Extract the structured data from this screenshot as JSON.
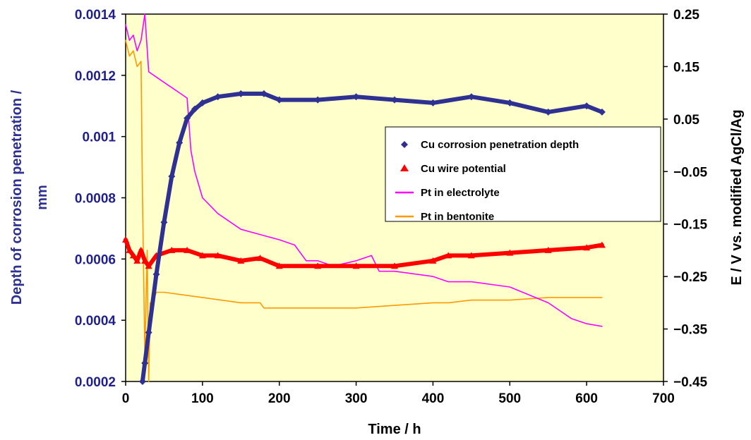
{
  "chart_data": {
    "type": "line",
    "xlabel": "Time / h",
    "ylabel_left": [
      "Depth of corrosion penetration /",
      "mm"
    ],
    "ylabel_right": "E / V vs. modified AgCl/Ag",
    "xlim": [
      0,
      700
    ],
    "ylim_left": [
      0.0002,
      0.0014
    ],
    "ylim_right": [
      -0.45,
      0.25
    ],
    "x_ticks": [
      "0",
      "100",
      "200",
      "300",
      "400",
      "500",
      "600",
      "700"
    ],
    "y_left_ticks": [
      "0.0002",
      "0.0004",
      "0.0006",
      "0.0008",
      "0.001",
      "0.0012",
      "0.0014"
    ],
    "y_right_ticks": [
      "-0.45",
      "-0.35",
      "-0.25",
      "-0.15",
      "-0.05",
      "0.05",
      "0.15",
      "0.25"
    ],
    "plot_background": "#ffffcc",
    "legend_position": "right-center",
    "series": [
      {
        "name": "Cu corrosion penetration depth",
        "axis": "left",
        "marker": "diamond",
        "color": "#2e3192",
        "x": [
          22,
          25,
          30,
          40,
          50,
          60,
          70,
          80,
          90,
          100,
          120,
          150,
          180,
          200,
          250,
          300,
          350,
          400,
          450,
          500,
          550,
          600,
          620
        ],
        "y": [
          0.0002,
          0.00026,
          0.00036,
          0.00055,
          0.00072,
          0.00087,
          0.00098,
          0.00106,
          0.00109,
          0.00111,
          0.00113,
          0.00114,
          0.00114,
          0.00112,
          0.00112,
          0.00113,
          0.00112,
          0.00111,
          0.00113,
          0.00111,
          0.00108,
          0.0011,
          0.00108
        ]
      },
      {
        "name": "Cu wire potential",
        "axis": "right",
        "marker": "triangle",
        "color": "#ff0000",
        "x": [
          0,
          5,
          10,
          15,
          20,
          25,
          30,
          40,
          60,
          80,
          100,
          120,
          150,
          175,
          200,
          250,
          300,
          350,
          400,
          420,
          450,
          500,
          550,
          600,
          620
        ],
        "y": [
          -0.18,
          -0.2,
          -0.21,
          -0.22,
          -0.2,
          -0.22,
          -0.23,
          -0.21,
          -0.2,
          -0.2,
          -0.21,
          -0.21,
          -0.22,
          -0.215,
          -0.23,
          -0.23,
          -0.23,
          -0.23,
          -0.22,
          -0.21,
          -0.21,
          -0.205,
          -0.2,
          -0.195,
          -0.19
        ]
      },
      {
        "name": "Pt in electrolyte",
        "axis": "right",
        "marker": "none",
        "color": "#ff00ff",
        "x": [
          0,
          5,
          10,
          15,
          20,
          25,
          30,
          40,
          50,
          60,
          70,
          80,
          85,
          90,
          100,
          120,
          150,
          175,
          200,
          220,
          235,
          250,
          270,
          300,
          320,
          330,
          350,
          400,
          420,
          450,
          500,
          550,
          580,
          600,
          620
        ],
        "y": [
          0.23,
          0.2,
          0.21,
          0.18,
          0.2,
          0.25,
          0.14,
          0.13,
          0.12,
          0.11,
          0.1,
          0.09,
          -0.01,
          -0.05,
          -0.1,
          -0.13,
          -0.16,
          -0.17,
          -0.18,
          -0.19,
          -0.22,
          -0.22,
          -0.23,
          -0.22,
          -0.21,
          -0.24,
          -0.24,
          -0.25,
          -0.26,
          -0.26,
          -0.27,
          -0.3,
          -0.33,
          -0.34,
          -0.345
        ]
      },
      {
        "name": "Pt in bentonite",
        "axis": "right",
        "marker": "none",
        "color": "#ff9900",
        "x": [
          0,
          5,
          10,
          15,
          20,
          22,
          25,
          28,
          30,
          32,
          35,
          40,
          50,
          100,
          150,
          175,
          180,
          200,
          250,
          300,
          350,
          400,
          420,
          450,
          500,
          550,
          600,
          620
        ],
        "y": [
          0.2,
          0.17,
          0.18,
          0.15,
          0.16,
          -0.1,
          -0.4,
          -0.2,
          -0.45,
          -0.3,
          -0.3,
          -0.28,
          -0.28,
          -0.29,
          -0.3,
          -0.3,
          -0.31,
          -0.31,
          -0.31,
          -0.31,
          -0.305,
          -0.3,
          -0.3,
          -0.295,
          -0.295,
          -0.29,
          -0.29,
          -0.29
        ]
      }
    ]
  }
}
